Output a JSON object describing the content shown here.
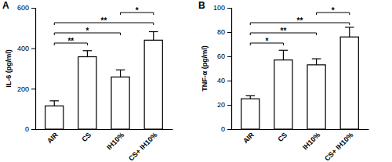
{
  "chart_data": [
    {
      "type": "bar",
      "panel_label": "A",
      "y_label": "IL-6 (pg/ml)",
      "categories": [
        "AIR",
        "CS",
        "IH10%",
        "CS+ IH10%"
      ],
      "values": [
        115,
        358,
        258,
        440
      ],
      "errors": [
        25,
        30,
        35,
        42
      ],
      "color": "#ffffff",
      "ylim": [
        0,
        600
      ],
      "yticks": [
        0,
        200,
        400,
        600
      ],
      "comparisons": [
        {
          "groups": [
            "IH10%",
            "CS+ IH10%"
          ],
          "label": "*"
        },
        {
          "groups": [
            "AIR",
            "CS+ IH10%"
          ],
          "label": "**"
        },
        {
          "groups": [
            "AIR",
            "IH10%"
          ],
          "label": "*"
        },
        {
          "groups": [
            "AIR",
            "CS"
          ],
          "label": "**"
        }
      ]
    },
    {
      "type": "bar",
      "panel_label": "B",
      "y_label": "TNF-α (pg/ml)",
      "categories": [
        "AIR",
        "CS",
        "IH10%",
        "CS+ IH10%"
      ],
      "values": [
        25,
        57,
        53,
        76
      ],
      "errors": [
        2.5,
        8,
        5,
        8
      ],
      "color": "#ffffff",
      "ylim": [
        0,
        100
      ],
      "yticks": [
        0,
        20,
        40,
        60,
        80,
        100
      ],
      "comparisons": [
        {
          "groups": [
            "IH10%",
            "CS+ IH10%"
          ],
          "label": "*"
        },
        {
          "groups": [
            "AIR",
            "CS+ IH10%"
          ],
          "label": "**"
        },
        {
          "groups": [
            "AIR",
            "IH10%"
          ],
          "label": "**"
        },
        {
          "groups": [
            "AIR",
            "CS"
          ],
          "label": "*"
        }
      ]
    }
  ]
}
